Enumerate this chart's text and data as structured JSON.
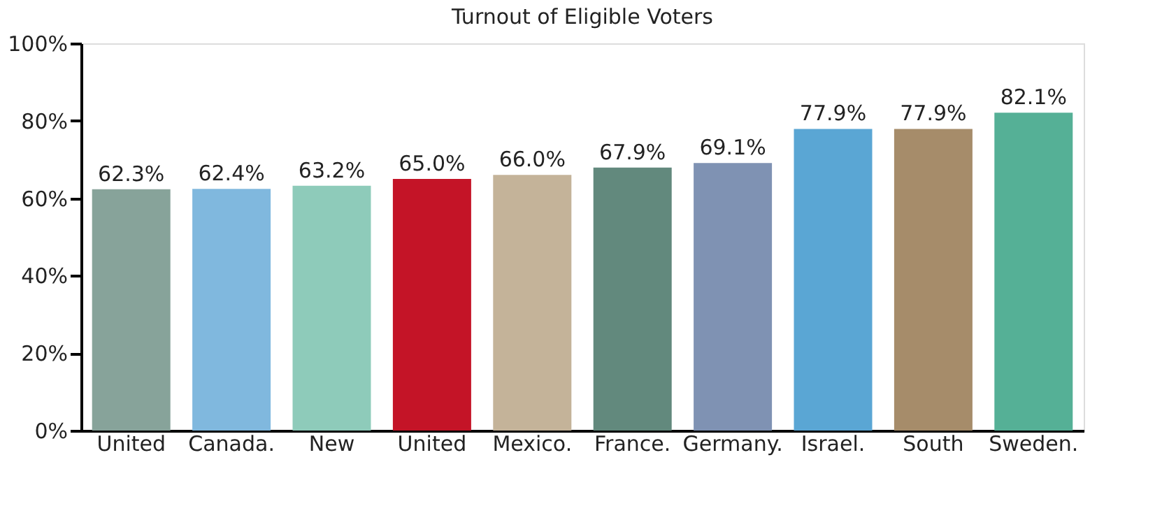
{
  "chart_data": {
    "type": "bar",
    "title": "Turnout of Eligible Voters",
    "categories": [
      "United",
      "Canada.",
      "New",
      "United",
      "Mexico.",
      "France.",
      "Germany.",
      "Israel.",
      "South",
      "Sweden."
    ],
    "values": [
      62.3,
      62.4,
      63.2,
      65.0,
      66.0,
      67.9,
      69.1,
      77.9,
      77.9,
      82.1
    ],
    "value_labels": [
      "62.3%",
      "62.4%",
      "63.2%",
      "65.0%",
      "66.0%",
      "67.9%",
      "69.1%",
      "77.9%",
      "77.9%",
      "82.1%"
    ],
    "colors": [
      "#87a39a",
      "#80b8de",
      "#8ecbba",
      "#c41427",
      "#c4b399",
      "#62897d",
      "#7f92b3",
      "#5aa6d4",
      "#a68c6a",
      "#55b096"
    ],
    "ylim": [
      0,
      100
    ],
    "yticks": [
      {
        "value": 0,
        "label": "0%"
      },
      {
        "value": 20,
        "label": "20%"
      },
      {
        "value": 40,
        "label": "40%"
      },
      {
        "value": 60,
        "label": "60%"
      },
      {
        "value": 80,
        "label": "80%"
      },
      {
        "value": 100,
        "label": "100%"
      }
    ],
    "grid": false
  }
}
